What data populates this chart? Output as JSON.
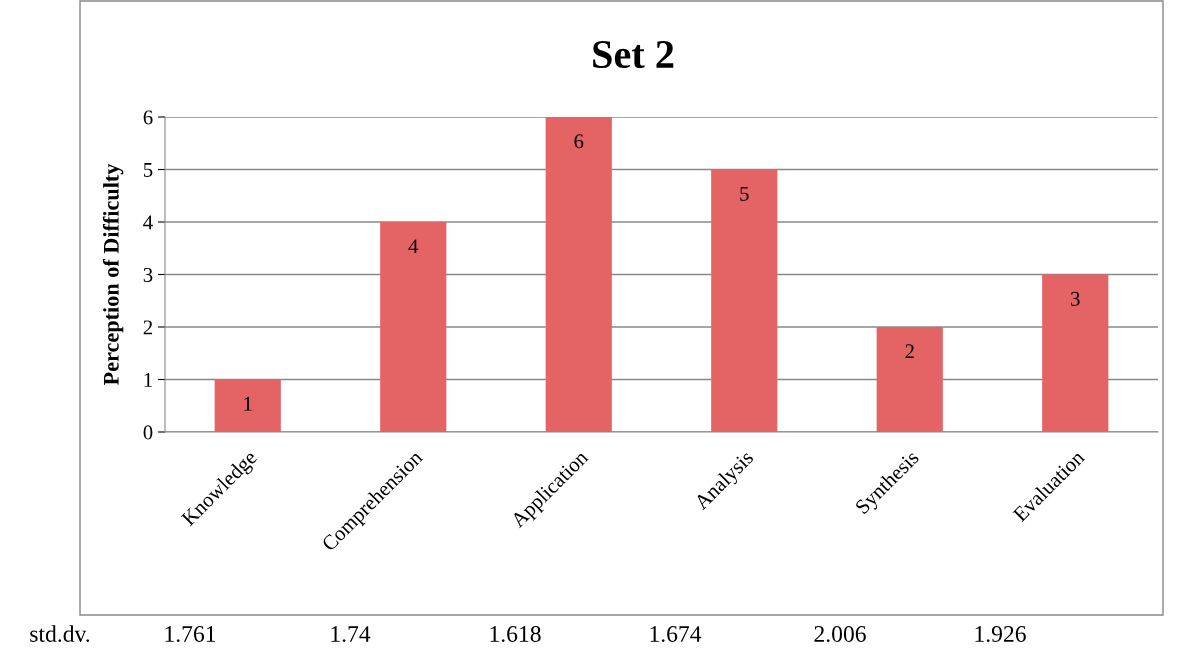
{
  "chart_data": {
    "type": "bar",
    "title": "Set 2",
    "ylabel": "Perception of Difficulty",
    "categories": [
      "Knowledge",
      "Comprehension",
      "Application",
      "Analysis",
      "Synthesis",
      "Evaluation"
    ],
    "values": [
      1,
      4,
      6,
      5,
      2,
      3
    ],
    "color": "#e46466",
    "ylim": [
      0,
      6
    ],
    "yticks": [
      0,
      1,
      2,
      3,
      4,
      5,
      6
    ],
    "grid": "y",
    "data_labels": true,
    "annotations": [
      "std.dv.",
      "1.761",
      "1.74",
      "1.618",
      "1.674",
      "2.006",
      "1.926"
    ]
  }
}
